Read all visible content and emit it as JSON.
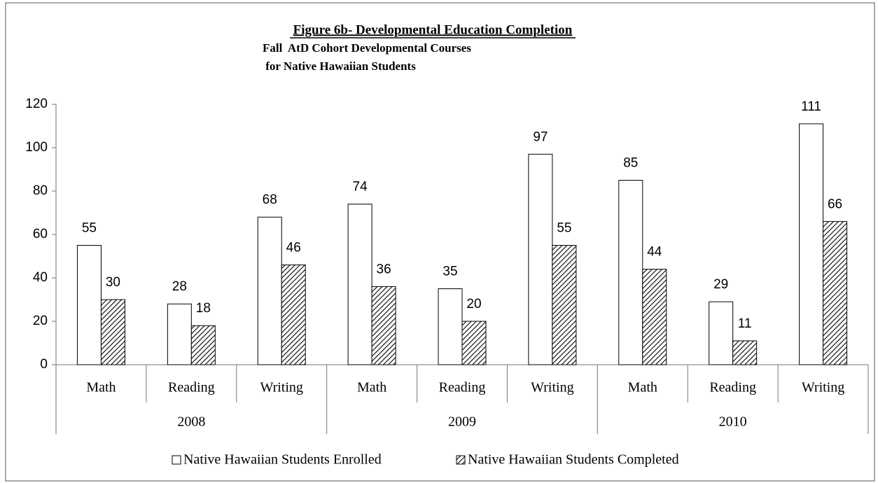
{
  "chart_data": {
    "type": "bar",
    "title": "Figure 6b- Developmental Education Completion",
    "subtitle": [
      "Fall  AtD Cohort Developmental Courses",
      " for Native Hawaiian Students"
    ],
    "categories": [
      "Math",
      "Reading",
      "Writing",
      "Math",
      "Reading",
      "Writing",
      "Math",
      "Reading",
      "Writing"
    ],
    "groups": [
      "2008",
      "2009",
      "2010"
    ],
    "series": [
      {
        "name": "Native Hawaiian Students Enrolled",
        "color": "#ffffff",
        "values": [
          55,
          28,
          68,
          74,
          35,
          97,
          85,
          29,
          111
        ]
      },
      {
        "name": "Native Hawaiian Students Completed",
        "color": "hatch",
        "values": [
          30,
          18,
          46,
          36,
          20,
          55,
          44,
          11,
          66
        ]
      }
    ],
    "ylim": [
      0,
      120
    ],
    "yticks": [
      0,
      20,
      40,
      60,
      80,
      100,
      120
    ],
    "grid": false,
    "legend": "bottom"
  }
}
